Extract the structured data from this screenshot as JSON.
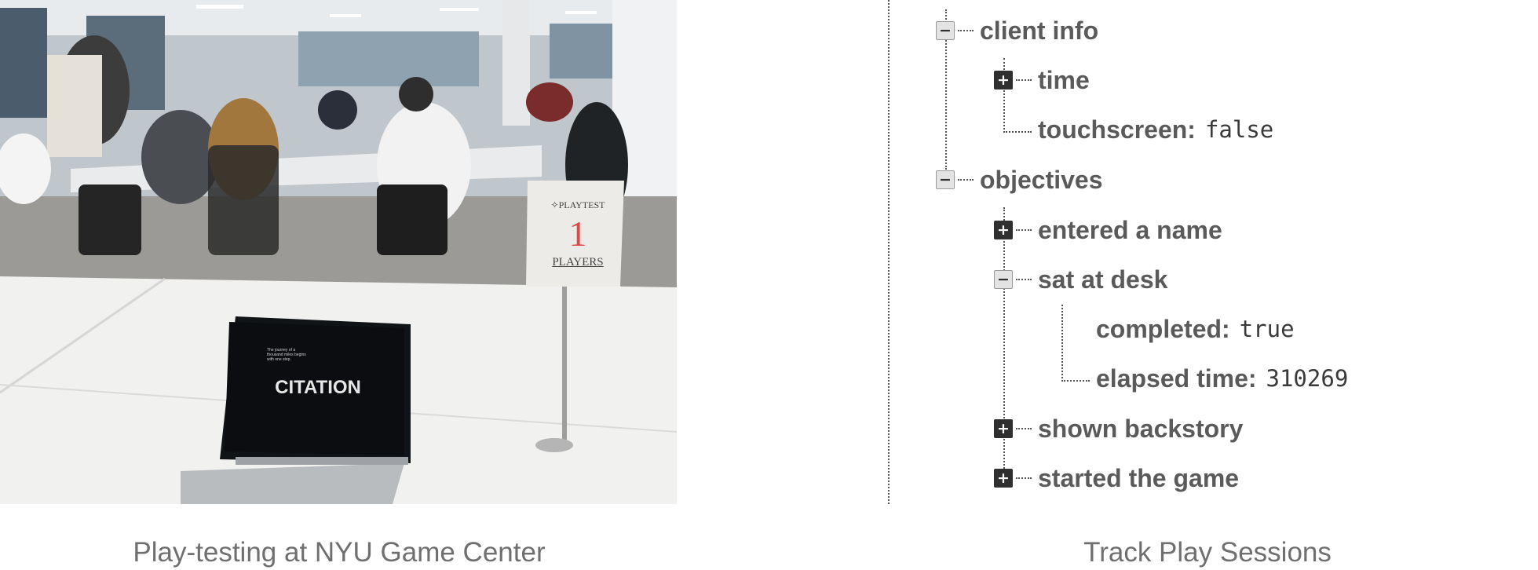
{
  "left_panel": {
    "caption": "Play-testing at NYU Game Center",
    "sign": {
      "header": "✧PLAYTEST",
      "number": "1",
      "label": "PLAYERS"
    },
    "laptop_screen": {
      "title": "CITATION",
      "quote": "The journey of a thousand miles begins with one step."
    }
  },
  "right_panel": {
    "caption": "Track Play Sessions",
    "tree": {
      "client_info": {
        "label": "client info",
        "time": {
          "label": "time"
        },
        "touchscreen": {
          "label": "touchscreen:",
          "value": "false"
        }
      },
      "objectives": {
        "label": "objectives",
        "entered_a_name": {
          "label": "entered a name"
        },
        "sat_at_desk": {
          "label": "sat at desk",
          "completed": {
            "label": "completed:",
            "value": "true"
          },
          "elapsed_time": {
            "label": "elapsed time:",
            "value": "310269"
          }
        },
        "shown_backstory": {
          "label": "shown backstory"
        },
        "started_the_game": {
          "label": "started the game"
        }
      }
    }
  },
  "colors": {
    "text_dark": "#5a5a5a",
    "caption_gray": "#6f6f6f",
    "toggle_dark": "#2f2f2f"
  }
}
